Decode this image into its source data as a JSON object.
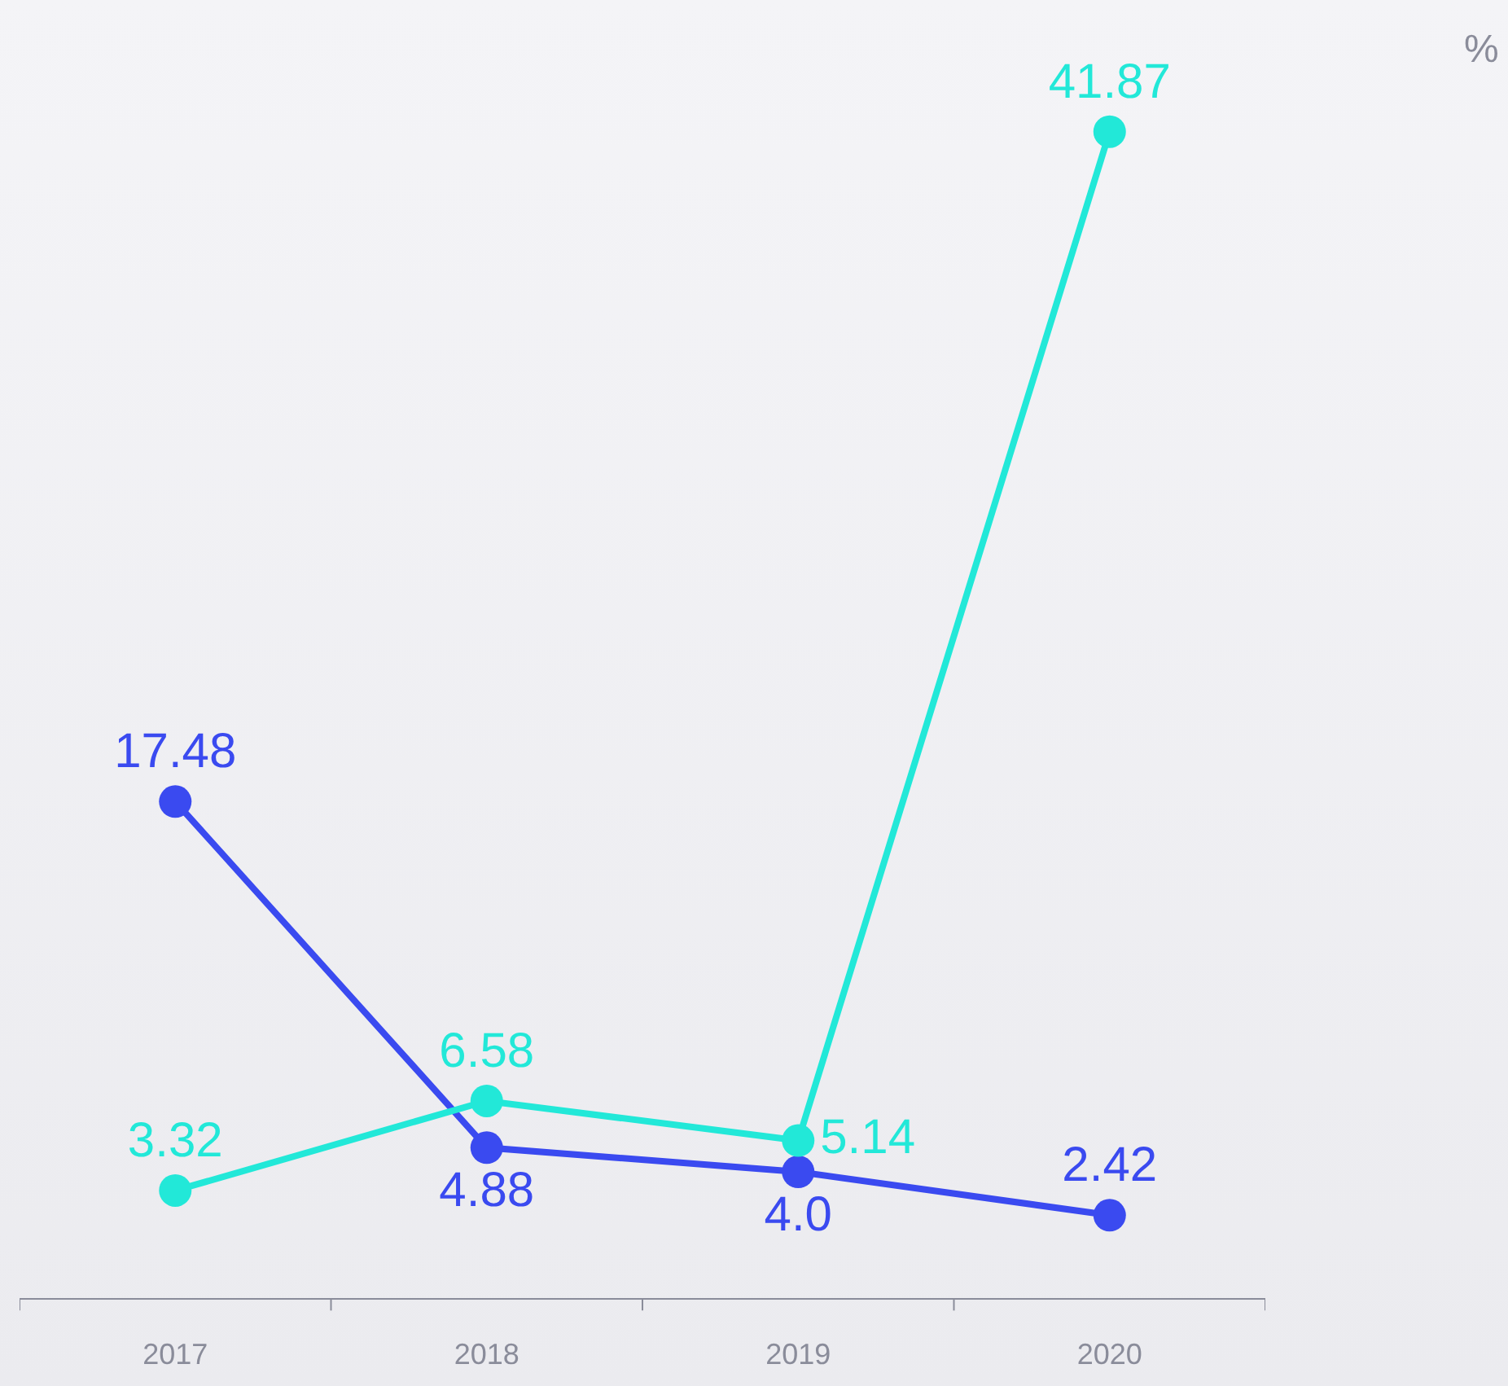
{
  "chart_data": {
    "type": "line",
    "annotations": [
      "%"
    ],
    "categories": [
      "2017",
      "2018",
      "2019",
      "2020"
    ],
    "series": [
      {
        "color": "#3a4af0",
        "values": [
          17.48,
          4.88,
          4.0,
          2.42
        ],
        "value_labels": [
          "17.48",
          "4.88",
          "4.0",
          "2.42"
        ]
      },
      {
        "color": "#22e8d8",
        "values": [
          3.32,
          6.58,
          5.14,
          41.87
        ],
        "value_labels": [
          "3.32",
          "6.58",
          "5.14",
          "41.87"
        ]
      }
    ],
    "tick_labels": "x",
    "marker": "circle",
    "grid": false,
    "legend": false
  }
}
